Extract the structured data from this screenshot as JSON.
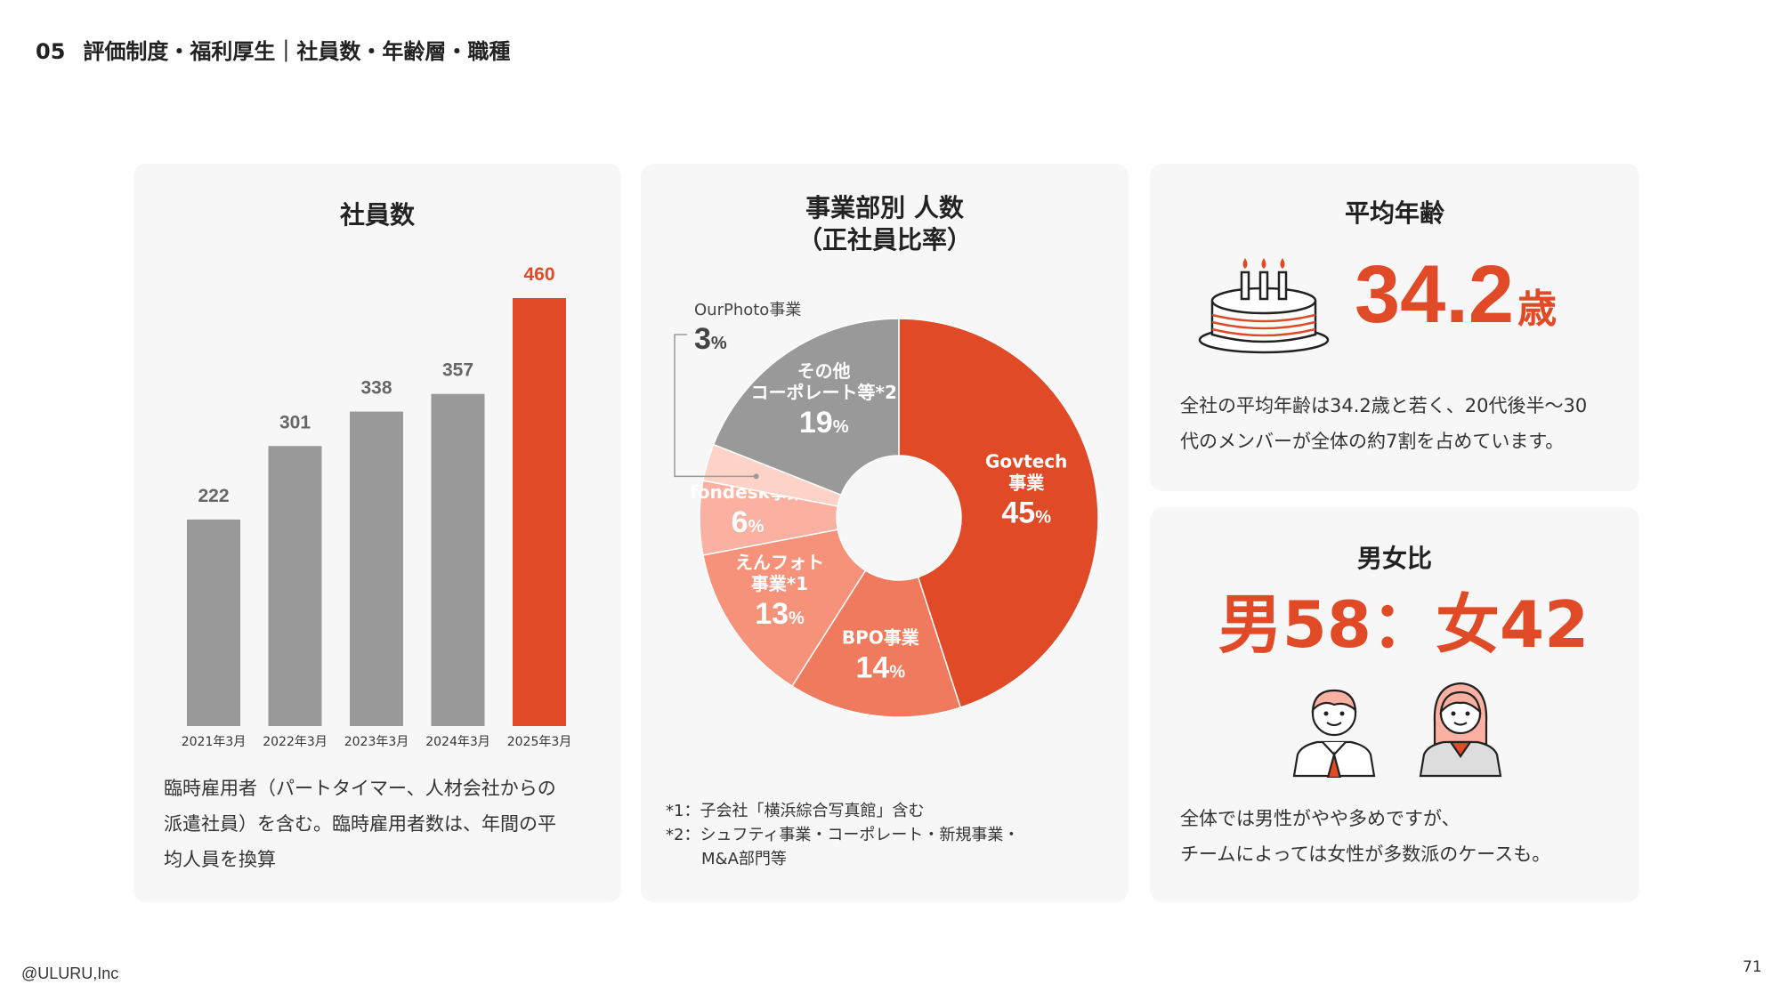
{
  "header": {
    "section_number": "05",
    "title": "評価制度・福利厚生｜社員数・年齢層・職種"
  },
  "colors": {
    "accent": "#e04a27",
    "gray_bar": "#999999",
    "card_bg": "#f7f7f7"
  },
  "employees_card": {
    "title": "社員数",
    "description": [
      "臨時雇用者（パートタイマー、人材会社からの",
      "派遣社員）を含む。臨時雇用者数は、年間の平",
      "均人員を換算"
    ]
  },
  "division_card": {
    "title_line1": "事業部別 人数",
    "title_line2": "（正社員比率）",
    "footnotes": [
      "*1：子会社「横浜綜合写真館」含む",
      "*2：シュフティ事業・コーポレート・新規事業・",
      "M&A部門等"
    ]
  },
  "age_card": {
    "title": "平均年齢",
    "icon": "birthday-cake-icon",
    "value": "34.2",
    "unit": "歳",
    "description": [
      "全社の平均年齢は34.2歳と若く、20代後半〜30",
      "代のメンバーが全体の約7割を占めています。"
    ]
  },
  "gender_card": {
    "title": "男女比",
    "ratio_text": "男58：女42",
    "male_label": "男",
    "male_value": 58,
    "female_label": "女",
    "female_value": 42,
    "icons": [
      "male-employee-icon",
      "female-employee-icon"
    ],
    "description": [
      "全体では男性がやや多めですが、",
      "チームによっては女性が多数派のケースも。"
    ]
  },
  "chart_data": [
    {
      "type": "bar",
      "title": "社員数",
      "categories": [
        "2021年3月",
        "2022年3月",
        "2023年3月",
        "2024年3月",
        "2025年3月"
      ],
      "values": [
        222,
        301,
        338,
        357,
        460
      ],
      "highlight_index": 4,
      "colors": [
        "#999999",
        "#999999",
        "#999999",
        "#999999",
        "#e04a27"
      ],
      "ylim": [
        0,
        460
      ],
      "grid": false
    },
    {
      "type": "pie",
      "title": "事業部別 人数（正社員比率）",
      "donut": true,
      "slices": [
        {
          "name_lines": [
            "Govtech",
            "事業"
          ],
          "value": 45,
          "color": "#e04a27"
        },
        {
          "name_lines": [
            "BPO事業"
          ],
          "value": 14,
          "color": "#f07a5e"
        },
        {
          "name_lines": [
            "えんフォト",
            "事業*1"
          ],
          "value": 13,
          "color": "#f7927a"
        },
        {
          "name_lines": [
            "fondesk事業"
          ],
          "value": 6,
          "color": "#fbb1a1"
        },
        {
          "name_lines": [
            "OurPhoto事業"
          ],
          "value": 3,
          "color": "#fdd2c7"
        },
        {
          "name_lines": [
            "その他",
            "コーポレート等*2"
          ],
          "value": 19,
          "color": "#999999"
        }
      ],
      "unit": "%"
    }
  ]
}
